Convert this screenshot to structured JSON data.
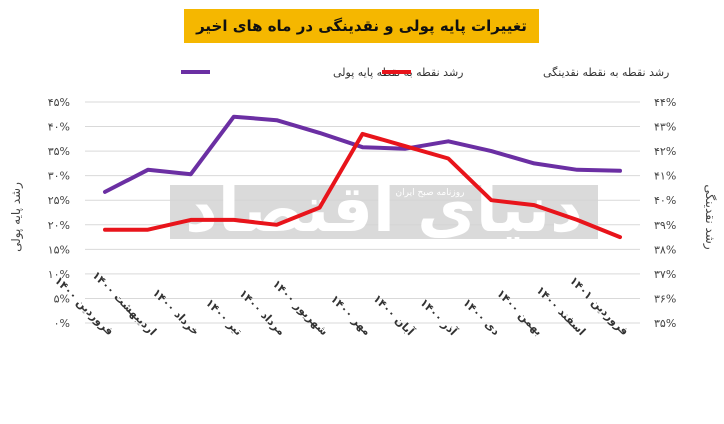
{
  "chart_data": {
    "type": "line",
    "title": "تغییرات پایه پولی و نقدینگی در ماه های اخیر",
    "left_ylabel": "رشد پایه پولی",
    "right_ylabel": "رشد نقدینگی",
    "categories": [
      "فروردین ۱۴۰۰",
      "اردیبهشت ۱۴۰۰",
      "خرداد ۱۴۰۰",
      "تیر ۱۴۰۰",
      "مرداد ۱۴۰۰",
      "شهریور ۱۴۰۰",
      "مهر ۱۴۰۰",
      "آبان ۱۴۰۰",
      "آذر ۱۴۰۰",
      "دی ۱۴۰۰",
      "بهمن ۱۴۰۰",
      "اسفند ۱۴۰۰",
      "فروردین ۱۴۰۱"
    ],
    "left_axis": {
      "min": 0,
      "max": 45,
      "ticks": [
        "۰%",
        "۵%",
        "۱۰%",
        "۱۵%",
        "۲۰%",
        "۲۵%",
        "۳۰%",
        "۳۵%",
        "۴۰%",
        "۴۵%"
      ]
    },
    "right_axis": {
      "min": 35,
      "max": 44,
      "ticks": [
        "۳۵%",
        "۳۶%",
        "۳۷%",
        "۳۸%",
        "۳۹%",
        "۴۰%",
        "۴۱%",
        "۴۲%",
        "۴۳%",
        "۴۴%"
      ]
    },
    "series": [
      {
        "name": "رشد نقطه به نقطه پایه پولی",
        "axis": "left",
        "color": "#6b2fa3",
        "values": [
          26.7,
          31.2,
          30.3,
          42.0,
          41.3,
          38.7,
          35.8,
          35.5,
          37.0,
          35.0,
          32.5,
          31.2,
          31.0
        ]
      },
      {
        "name": "رشد نقطه به نقطه نقدینگی",
        "axis": "right",
        "color": "#e8141b",
        "values": [
          38.8,
          38.8,
          39.2,
          39.2,
          39.0,
          39.7,
          42.7,
          42.2,
          41.7,
          40.0,
          39.8,
          39.2,
          38.5
        ]
      }
    ],
    "grid": true,
    "legend_position": "top"
  },
  "watermark": {
    "brand": "دنیای اقتصاد",
    "tagline": "روزنامه صبح ایران"
  }
}
